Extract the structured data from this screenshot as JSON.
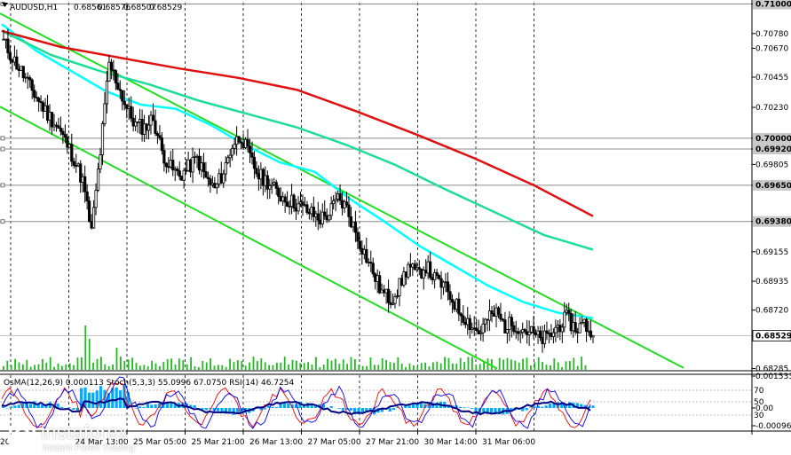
{
  "chart_data": [
    {
      "type": "candlestick",
      "title": "AUDUSD,H1",
      "ohlc_readout": [
        "0.68561",
        "0.68576",
        "0.68507",
        "0.68529"
      ],
      "current_price": 0.68529,
      "ylim": [
        0.68275,
        0.7101
      ],
      "y_ticks": [
        "0.71000",
        "0.70780",
        "0.70670",
        "0.70455",
        "0.70230",
        "0.70000",
        "0.69920",
        "0.69805",
        "0.69650",
        "0.69380",
        "0.69155",
        "0.68935",
        "0.68720",
        "0.68529",
        "0.68285"
      ],
      "marked_levels": [
        {
          "value": 0.71,
          "label": "0.71000"
        },
        {
          "value": 0.7,
          "label": "0.70000"
        },
        {
          "value": 0.6992,
          "label": "0.69920"
        },
        {
          "value": 0.6965,
          "label": "0.69650"
        },
        {
          "value": 0.6938,
          "label": "0.69380"
        }
      ],
      "x_ticks": [
        "20",
        "24 Mar 13:00",
        "25 Mar 05:00",
        "25 Mar 21:00",
        "26 Mar 13:00",
        "27 Mar 05:00",
        "27 Mar 21:00",
        "30 Mar 14:00",
        "31 Mar 06:00"
      ],
      "close_path": [
        0.7072,
        0.706,
        0.705,
        0.7038,
        0.7028,
        0.7018,
        0.701,
        0.6998,
        0.6985,
        0.6968,
        0.693,
        0.699,
        0.7055,
        0.704,
        0.7022,
        0.701,
        0.7008,
        0.7015,
        0.699,
        0.6978,
        0.6972,
        0.6978,
        0.6985,
        0.697,
        0.6962,
        0.6975,
        0.6995,
        0.7002,
        0.6985,
        0.6972,
        0.6968,
        0.696,
        0.6955,
        0.6952,
        0.6948,
        0.6944,
        0.694,
        0.6944,
        0.6955,
        0.6948,
        0.693,
        0.6915,
        0.69,
        0.6885,
        0.688,
        0.689,
        0.6905,
        0.6898,
        0.6905,
        0.6895,
        0.689,
        0.688,
        0.687,
        0.6862,
        0.6855,
        0.6865,
        0.687,
        0.686,
        0.6862,
        0.6858,
        0.6855,
        0.685,
        0.6852,
        0.686,
        0.6866,
        0.6858,
        0.6862,
        0.6853
      ],
      "moving_averages": [
        {
          "color": "#00ffff",
          "values": [
            0.7085,
            0.7065,
            0.705,
            0.7035,
            0.7025,
            0.7022,
            0.701,
            0.6995,
            0.6982,
            0.6975,
            0.6955,
            0.6938,
            0.692,
            0.6905,
            0.689,
            0.6878,
            0.687,
            0.6866
          ]
        },
        {
          "color": "#1edc9a",
          "values": [
            0.708,
            0.7062,
            0.705,
            0.704,
            0.7028,
            0.7018,
            0.7008,
            0.6995,
            0.698,
            0.6962,
            0.6945,
            0.6928,
            0.6917
          ]
        },
        {
          "color": "#e01010",
          "values": [
            0.708,
            0.7068,
            0.706,
            0.7052,
            0.7045,
            0.7036,
            0.702,
            0.7003,
            0.6985,
            0.6965,
            0.6942
          ]
        }
      ],
      "channel_color": "#22dd22",
      "volume_color": "#1fbb1f",
      "grid": true
    },
    {
      "type": "oscillator",
      "label": "OsMA(12,26,9) 0.000113 Stoch(5,3,3) 55.0996 67.0750 RSI(14) 46.7254",
      "left_ticks": [
        "0.0015332",
        "0.00",
        "-0.0009696"
      ],
      "right_ticks": [
        "70",
        "50",
        "30"
      ],
      "osma_color": "#00aaff",
      "stoch_main_color": "#0000ff",
      "stoch_signal_color": "#ff0000",
      "rsi_color": "#000080",
      "grid": true
    }
  ],
  "brand": {
    "name": "instaforex",
    "tagline": "Instant Forex Trading"
  }
}
